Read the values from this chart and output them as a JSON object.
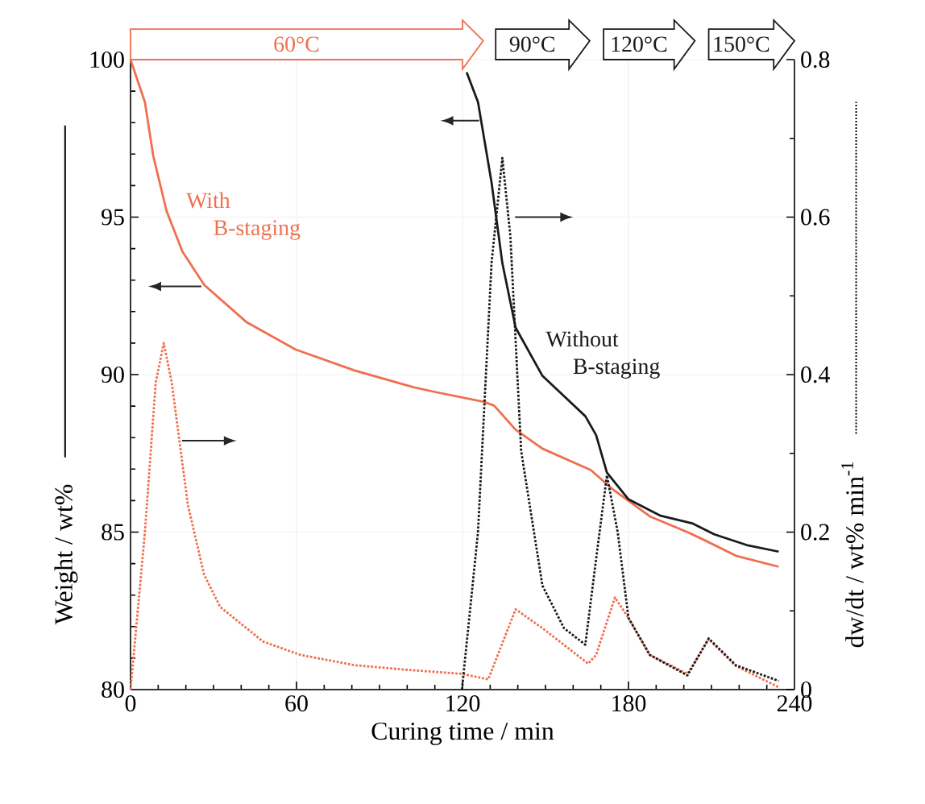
{
  "chart_data": {
    "type": "line",
    "xlabel": "Curing time / min",
    "ylabel": "Weight / wt%",
    "y2label": "dw/dt / wt% min$^{-1}$",
    "xlim": [
      0,
      240
    ],
    "xticks": [
      0,
      60,
      120,
      180,
      240
    ],
    "ylim": [
      80,
      100
    ],
    "yticks": [
      80,
      85,
      90,
      95,
      100
    ],
    "y2lim": [
      0,
      0.8
    ],
    "y2ticks": [
      0,
      0.2,
      0.4,
      0.6,
      0.8
    ],
    "grid": true,
    "marker": "none",
    "series": [
      {
        "color": "#ef6f4f",
        "line_style": "solid",
        "x": [
          0,
          5.2,
          8.2,
          13,
          18.8,
          26.6,
          42,
          59.6,
          81,
          102.3,
          110,
          127.5,
          131.4,
          139.2,
          148.9,
          166.4,
          174,
          187.7,
          201.3,
          207.1,
          218.8,
          234.3
        ],
        "values": [
          100,
          98.65,
          96.95,
          95.2,
          93.9,
          92.85,
          91.66,
          90.8,
          90.13,
          89.6,
          89.45,
          89.14,
          89.02,
          88.25,
          87.65,
          86.97,
          86.38,
          85.5,
          85.0,
          84.76,
          84.25,
          83.9
        ]
      },
      {
        "color": "#1a1a1a",
        "line_style": "solid",
        "x": [
          121.5,
          125.6,
          130.5,
          134.4,
          139.2,
          148.9,
          164.4,
          168.3,
          172.2,
          180,
          191.6,
          203.3,
          211,
          222.7,
          234.3
        ],
        "values": [
          99.6,
          98.65,
          96.1,
          93.54,
          91.49,
          89.96,
          88.68,
          88.08,
          86.89,
          86.04,
          85.52,
          85.27,
          84.93,
          84.59,
          84.38
        ]
      },
      {
        "color": "#ef6f4f",
        "line_style": "dotted",
        "axis": "y2",
        "x": [
          0,
          5.2,
          9.1,
          12,
          14.9,
          20.7,
          26.6,
          32.4,
          47.9,
          61.5,
          81,
          100.4,
          119.8,
          129.3,
          139.2,
          148.9,
          165.4,
          168.3,
          175.1,
          180,
          187.7,
          201.3,
          209,
          218.8,
          234.3
        ],
        "values": [
          0,
          0.2,
          0.39,
          0.44,
          0.39,
          0.235,
          0.146,
          0.105,
          0.061,
          0.044,
          0.031,
          0.025,
          0.02,
          0.013,
          0.102,
          0.078,
          0.033,
          0.044,
          0.117,
          0.091,
          0.044,
          0.02,
          0.064,
          0.03,
          0.003
        ]
      },
      {
        "color": "#1a1a1a",
        "line_style": "dotted",
        "axis": "y2",
        "x": [
          119.8,
          125.6,
          130.5,
          134.4,
          137.3,
          141.2,
          148.9,
          156.7,
          164.4,
          168.3,
          172.2,
          176.1,
          180,
          187.7,
          201.3,
          209,
          218.8,
          234.3
        ],
        "values": [
          0,
          0.2,
          0.542,
          0.675,
          0.576,
          0.303,
          0.132,
          0.078,
          0.057,
          0.166,
          0.272,
          0.2,
          0.091,
          0.044,
          0.018,
          0.065,
          0.031,
          0.011
        ]
      }
    ],
    "annotations": [
      "With B-staging",
      "Without B-staging",
      "60°C",
      "90°C",
      "120°C",
      "150°C"
    ]
  }
}
